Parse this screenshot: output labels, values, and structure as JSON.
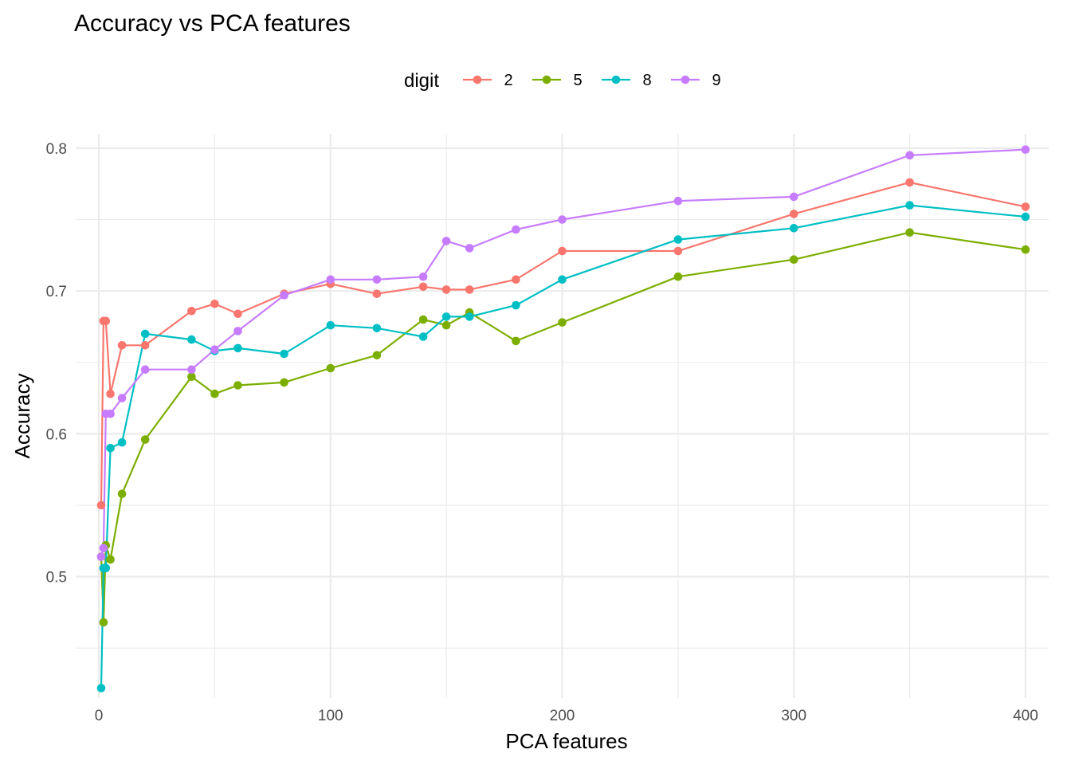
{
  "chart_data": {
    "type": "line",
    "title": "Accuracy vs PCA features",
    "xlabel": "PCA features",
    "ylabel": "Accuracy",
    "xlim": [
      -10,
      410
    ],
    "ylim": [
      0.415,
      0.81
    ],
    "x_ticks": [
      0,
      100,
      200,
      300,
      400
    ],
    "x_tick_labels": [
      "0",
      "100",
      "200",
      "300",
      "400"
    ],
    "y_ticks": [
      0.5,
      0.6,
      0.7,
      0.8
    ],
    "y_tick_labels": [
      "0.5",
      "0.6",
      "0.7",
      "0.8"
    ],
    "x_minor": [
      50,
      150,
      250,
      350
    ],
    "y_minor": [
      0.45,
      0.55,
      0.65,
      0.75
    ],
    "grid": true,
    "legend": {
      "title": "digit",
      "position": "top"
    },
    "x": [
      1,
      2,
      3,
      5,
      10,
      20,
      40,
      50,
      60,
      80,
      100,
      120,
      140,
      150,
      160,
      180,
      200,
      250,
      300,
      350,
      400
    ],
    "series": [
      {
        "name": "2",
        "color": "#F8766D",
        "values": [
          0.55,
          0.679,
          0.679,
          0.628,
          0.662,
          0.662,
          0.686,
          0.691,
          0.684,
          0.698,
          0.705,
          0.698,
          0.703,
          0.701,
          0.701,
          0.708,
          0.728,
          0.728,
          0.754,
          0.776,
          0.759
        ]
      },
      {
        "name": "5",
        "color": "#7CAE00",
        "values": [
          0.514,
          0.468,
          0.522,
          0.512,
          0.558,
          0.596,
          0.64,
          0.628,
          0.634,
          0.636,
          0.646,
          0.655,
          0.68,
          0.676,
          0.685,
          0.665,
          0.678,
          0.71,
          0.722,
          0.741,
          0.729
        ]
      },
      {
        "name": "8",
        "color": "#00BFC4",
        "values": [
          0.422,
          0.506,
          0.506,
          0.59,
          0.594,
          0.67,
          0.666,
          0.658,
          0.66,
          0.656,
          0.676,
          0.674,
          0.668,
          0.682,
          0.682,
          0.69,
          0.708,
          0.736,
          0.744,
          0.76,
          0.752
        ]
      },
      {
        "name": "9",
        "color": "#C77CFF",
        "values": [
          0.514,
          0.52,
          0.614,
          0.614,
          0.625,
          0.645,
          0.645,
          0.659,
          0.672,
          0.697,
          0.708,
          0.708,
          0.71,
          0.735,
          0.73,
          0.743,
          0.75,
          0.763,
          0.766,
          0.795,
          0.799
        ]
      }
    ]
  }
}
